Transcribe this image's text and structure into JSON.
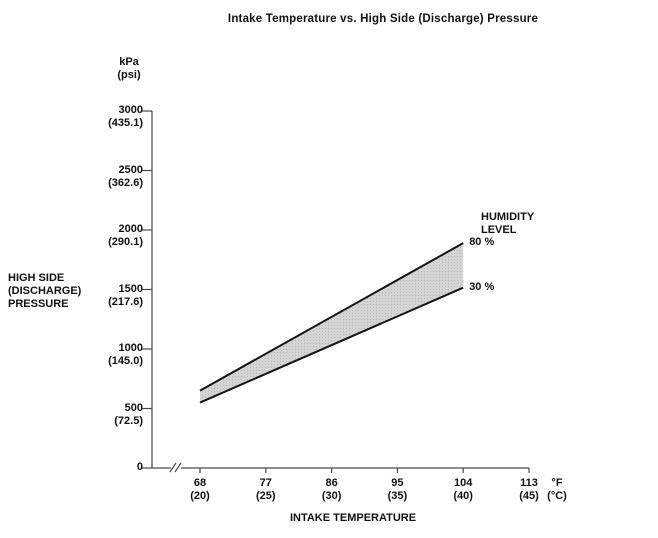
{
  "chart_data": {
    "type": "area",
    "title": "Intake Temperature vs. High Side (Discharge) Pressure",
    "xlabel": "INTAKE TEMPERATURE",
    "ylabel": "HIGH SIDE\n(DISCHARGE)\nPRESSURE",
    "y_unit": "kPa\n(psi)",
    "x_unit": "°F\n(°C)",
    "legend_title": "HUMIDITY\nLEVEL",
    "grid": false,
    "axis_break_on_x": true,
    "x_range_f": [
      68,
      113
    ],
    "y_range_kpa": [
      0,
      3000
    ],
    "x_ticks": [
      {
        "value": 68,
        "f": "68",
        "c": "(20)"
      },
      {
        "value": 77,
        "f": "77",
        "c": "(25)"
      },
      {
        "value": 86,
        "f": "86",
        "c": "(30)"
      },
      {
        "value": 95,
        "f": "95",
        "c": "(35)"
      },
      {
        "value": 104,
        "f": "104",
        "c": "(40)"
      },
      {
        "value": 113,
        "f": "113",
        "c": "(45)"
      }
    ],
    "y_ticks": [
      {
        "value": 3000,
        "kpa": "3000",
        "psi": "(435.1)"
      },
      {
        "value": 2500,
        "kpa": "2500",
        "psi": "(362.6)"
      },
      {
        "value": 2000,
        "kpa": "2000",
        "psi": "(290.1)"
      },
      {
        "value": 1500,
        "kpa": "1500",
        "psi": "(217.6)"
      },
      {
        "value": 1000,
        "kpa": "1000",
        "psi": "(145.0)"
      },
      {
        "value": 500,
        "kpa": "500",
        "psi": "(72.5)"
      },
      {
        "value": 0,
        "kpa": "0",
        "psi": ""
      }
    ],
    "series": [
      {
        "name": "80 %",
        "x_f": [
          68,
          104
        ],
        "y_kpa": [
          650,
          1890
        ]
      },
      {
        "name": "30 %",
        "x_f": [
          68,
          104
        ],
        "y_kpa": [
          550,
          1515
        ]
      }
    ],
    "band_fill": "#d4d4d4",
    "line_color": "#141414",
    "axis_color": "#4a4a4a"
  }
}
